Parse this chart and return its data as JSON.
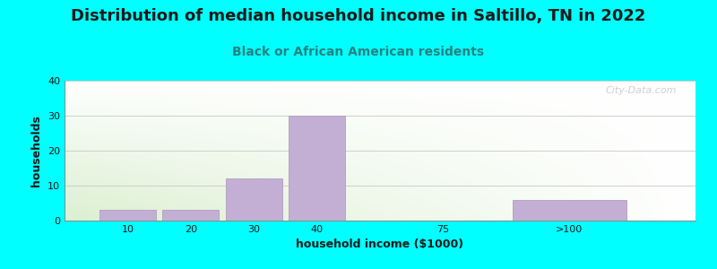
{
  "title": "Distribution of median household income in Saltillo, TN in 2022",
  "subtitle": "Black or African American residents",
  "xlabel": "household income ($1000)",
  "ylabel": "households",
  "categories": [
    "10",
    "20",
    "30",
    "40",
    "75",
    ">100"
  ],
  "values": [
    3,
    3,
    12,
    30,
    0,
    6
  ],
  "bar_color": "#c4afd4",
  "bar_edge_color": "#b09ec0",
  "background_color": "#00ffff",
  "ylim": [
    0,
    40
  ],
  "yticks": [
    0,
    10,
    20,
    30,
    40
  ],
  "title_fontsize": 13,
  "subtitle_fontsize": 10,
  "axis_label_fontsize": 9,
  "tick_fontsize": 8,
  "watermark": "City-Data.com",
  "title_color": "#1a1a1a",
  "subtitle_color": "#2a8080",
  "ylabel_color": "#1a1a1a",
  "xlabel_color": "#1a1a1a",
  "tick_color": "#1a1a1a"
}
